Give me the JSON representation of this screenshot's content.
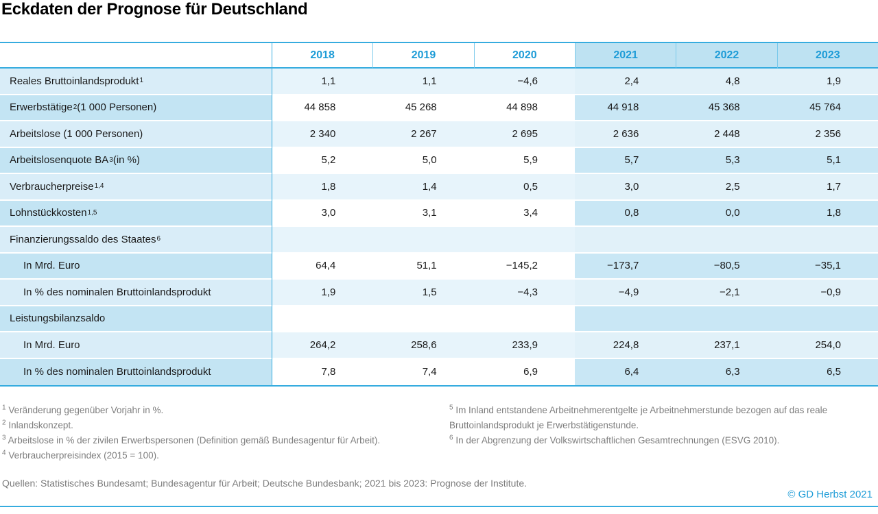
{
  "title": "Eckdaten der Prognose für Deutschland",
  "colors": {
    "accent": "#1E9CD7",
    "table_line": "#36ACDF",
    "row_light_label": "#D9EDF8",
    "row_light_value": "#E7F4FB",
    "row_light_forecast": "#E1F1F9",
    "row_alt_label": "#C3E4F3",
    "row_alt_value": "#FFFFFF",
    "row_alt_forecast": "#C9E7F5",
    "header_forecast_bg": "#BEE2F2",
    "footnote_text": "#7D7D7D"
  },
  "chart_data": {
    "type": "table",
    "title": "Eckdaten der Prognose für Deutschland",
    "columns": [
      "2018",
      "2019",
      "2020",
      "2021",
      "2022",
      "2023"
    ],
    "forecast_columns": [
      "2021",
      "2022",
      "2023"
    ],
    "rows": [
      {
        "label": "Reales Bruttoinlandsprodukt",
        "sup": "1",
        "suffix": "",
        "indent": false,
        "values": [
          "1,1",
          "1,1",
          "−4,6",
          "2,4",
          "4,8",
          "1,9"
        ]
      },
      {
        "label": "Erwerbstätige",
        "sup": "2",
        "suffix": " (1 000 Personen)",
        "indent": false,
        "values": [
          "44 858",
          "45 268",
          "44 898",
          "44 918",
          "45 368",
          "45 764"
        ]
      },
      {
        "label": "Arbeitslose (1 000 Personen)",
        "sup": "",
        "suffix": "",
        "indent": false,
        "values": [
          "2 340",
          "2 267",
          "2 695",
          "2 636",
          "2 448",
          "2 356"
        ]
      },
      {
        "label": "Arbeitslosenquote BA",
        "sup": "3",
        "suffix": " (in %)",
        "indent": false,
        "values": [
          "5,2",
          "5,0",
          "5,9",
          "5,7",
          "5,3",
          "5,1"
        ]
      },
      {
        "label": "Verbraucherpreise",
        "sup": "1,4",
        "suffix": "",
        "indent": false,
        "values": [
          "1,8",
          "1,4",
          "0,5",
          "3,0",
          "2,5",
          "1,7"
        ]
      },
      {
        "label": "Lohnstückkosten",
        "sup": "1,5",
        "suffix": "",
        "indent": false,
        "values": [
          "3,0",
          "3,1",
          "3,4",
          "0,8",
          "0,0",
          "1,8"
        ]
      },
      {
        "label": "Finanzierungssaldo des Staates",
        "sup": "6",
        "suffix": "",
        "indent": false,
        "values": [
          "",
          "",
          "",
          "",
          "",
          ""
        ]
      },
      {
        "label": "In Mrd. Euro",
        "sup": "",
        "suffix": "",
        "indent": true,
        "values": [
          "64,4",
          "51,1",
          "−145,2",
          "−173,7",
          "−80,5",
          "−35,1"
        ]
      },
      {
        "label": "In % des nominalen Bruttoinlandsprodukt",
        "sup": "",
        "suffix": "",
        "indent": true,
        "values": [
          "1,9",
          "1,5",
          "−4,3",
          "−4,9",
          "−2,1",
          "−0,9"
        ]
      },
      {
        "label": "Leistungsbilanzsaldo",
        "sup": "",
        "suffix": "",
        "indent": false,
        "values": [
          "",
          "",
          "",
          "",
          "",
          ""
        ]
      },
      {
        "label": "In Mrd. Euro",
        "sup": "",
        "suffix": "",
        "indent": true,
        "values": [
          "264,2",
          "258,6",
          "233,9",
          "224,8",
          "237,1",
          "254,0"
        ]
      },
      {
        "label": "In % des nominalen Bruttoinlandsprodukt",
        "sup": "",
        "suffix": "",
        "indent": true,
        "values": [
          "7,8",
          "7,4",
          "6,9",
          "6,4",
          "6,3",
          "6,5"
        ]
      }
    ]
  },
  "footnotes": {
    "left": [
      {
        "sup": "1",
        "text": "Veränderung gegenüber Vorjahr in %."
      },
      {
        "sup": "2",
        "text": "Inlandskonzept."
      },
      {
        "sup": "3",
        "text": "Arbeitslose in % der zivilen Erwerbspersonen (Definition gemäß Bundesagentur für Arbeit)."
      },
      {
        "sup": "4",
        "text": "Verbraucherpreisindex (2015 = 100)."
      }
    ],
    "right": [
      {
        "sup": "5",
        "text": "Im Inland entstandene Arbeitnehmerentgelte je Arbeitnehmerstunde bezogen auf das reale Bruttoinlandsprodukt je Erwerbstätigenstunde."
      },
      {
        "sup": "6",
        "text": "In der Abgrenzung der Volkswirtschaftlichen Gesamtrechnungen (ESVG 2010)."
      }
    ]
  },
  "sources": "Quellen: Statistisches Bundesamt; Bundesagentur für Arbeit; Deutsche Bundesbank; 2021 bis 2023: Prognose der Institute.",
  "credit": "© GD Herbst 2021"
}
